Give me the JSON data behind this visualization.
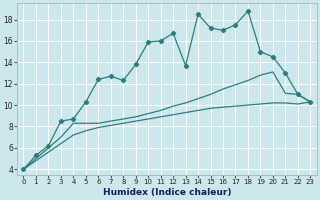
{
  "xlabel": "Humidex (Indice chaleur)",
  "bg_color": "#cde8ec",
  "grid_color": "#ffffff",
  "line_color": "#2e7d7d",
  "xlim": [
    -0.5,
    23.5
  ],
  "ylim": [
    3.5,
    19.5
  ],
  "yticks": [
    4,
    6,
    8,
    10,
    12,
    14,
    16,
    18
  ],
  "xticks": [
    0,
    1,
    2,
    3,
    4,
    5,
    6,
    7,
    8,
    9,
    10,
    11,
    12,
    13,
    14,
    15,
    16,
    17,
    18,
    19,
    20,
    21,
    22,
    23
  ],
  "series1_x": [
    0,
    1,
    2,
    3,
    4,
    5,
    6,
    7,
    8,
    9,
    10,
    11,
    12,
    13,
    14,
    15,
    16,
    17,
    18,
    19,
    20,
    21,
    22,
    23
  ],
  "series1_y": [
    4.0,
    5.3,
    6.2,
    8.5,
    8.7,
    10.3,
    12.4,
    12.7,
    12.3,
    13.8,
    15.9,
    16.0,
    16.7,
    13.7,
    18.5,
    17.2,
    17.0,
    17.5,
    18.8,
    15.0,
    14.5,
    13.0,
    11.0,
    10.3
  ],
  "series2_x": [
    0,
    1,
    2,
    3,
    4,
    5,
    6,
    7,
    8,
    9,
    10,
    11,
    12,
    13,
    14,
    15,
    16,
    17,
    18,
    19,
    20,
    21,
    22,
    23
  ],
  "series2_y": [
    4.0,
    5.0,
    6.0,
    7.0,
    8.3,
    8.3,
    8.3,
    8.5,
    8.7,
    8.9,
    9.2,
    9.5,
    9.9,
    10.2,
    10.6,
    11.0,
    11.5,
    11.9,
    12.3,
    12.8,
    13.1,
    11.1,
    11.0,
    10.3
  ],
  "series3_x": [
    0,
    1,
    2,
    3,
    4,
    5,
    6,
    7,
    8,
    9,
    10,
    11,
    12,
    13,
    14,
    15,
    16,
    17,
    18,
    19,
    20,
    21,
    22,
    23
  ],
  "series3_y": [
    4.0,
    4.8,
    5.6,
    6.4,
    7.2,
    7.6,
    7.9,
    8.1,
    8.3,
    8.5,
    8.7,
    8.9,
    9.1,
    9.3,
    9.5,
    9.7,
    9.8,
    9.9,
    10.0,
    10.1,
    10.2,
    10.2,
    10.1,
    10.3
  ]
}
